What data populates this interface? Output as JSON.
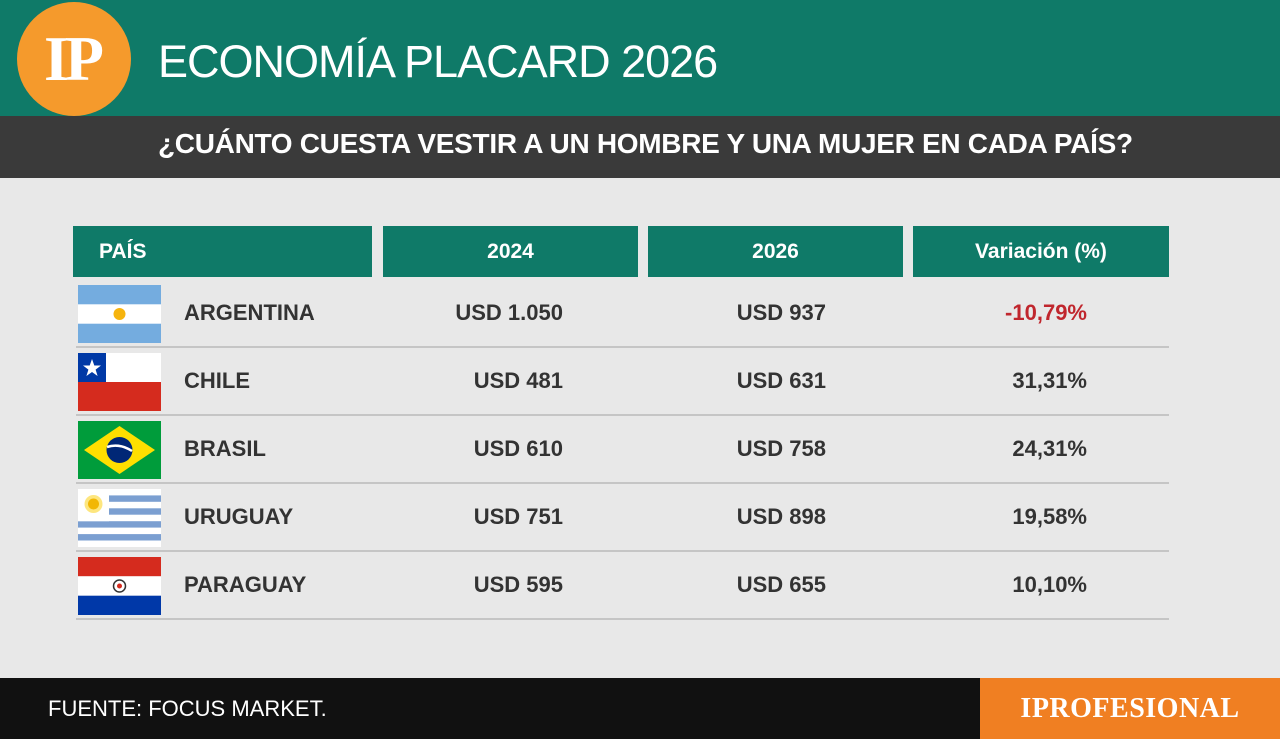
{
  "header": {
    "logo_text": "IP",
    "title": "ECONOMÍA PLACARD 2026",
    "subtitle": "¿CUÁNTO CUESTA VESTIR A UN HOMBRE Y UNA MUJER EN CADA PAÍS?"
  },
  "chart_data": {
    "type": "table",
    "columns": [
      "PAÍS",
      "2024",
      "2026",
      "Variación (%)"
    ],
    "rows": [
      {
        "country": "ARGENTINA",
        "flag": "argentina-flag-icon",
        "v2024": "USD 1.050",
        "v2026": "USD 937",
        "variation": "-10,79%"
      },
      {
        "country": "CHILE",
        "flag": "chile-flag-icon",
        "v2024": "USD 481",
        "v2026": "USD 631",
        "variation": "31,31%"
      },
      {
        "country": "BRASIL",
        "flag": "brazil-flag-icon",
        "v2024": "USD 610",
        "v2026": "USD 758",
        "variation": "24,31%"
      },
      {
        "country": "URUGUAY",
        "flag": "uruguay-flag-icon",
        "v2024": "USD 751",
        "v2026": "USD 898",
        "variation": "19,58%"
      },
      {
        "country": "PARAGUAY",
        "flag": "paraguay-flag-icon",
        "v2024": "USD 595",
        "v2026": "USD 655",
        "variation": "10,10%"
      }
    ]
  },
  "footer": {
    "source": "FUENTE: FOCUS MARKET.",
    "brand": "IPROFESIONAL"
  },
  "colors": {
    "header_green": "#0f7a68",
    "sub_dark": "#3a3a3a",
    "logo_orange": "#f59a2c",
    "negative_red": "#c0262d",
    "brand_orange": "#f07f22"
  }
}
